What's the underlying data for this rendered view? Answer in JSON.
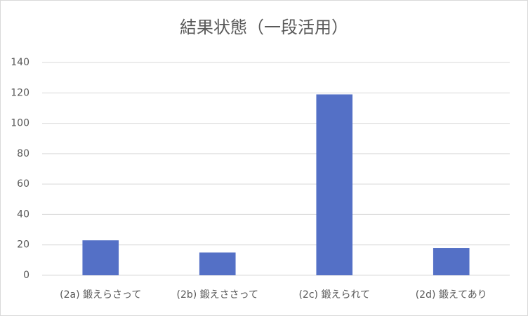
{
  "chart_data": {
    "type": "bar",
    "title": "結果状態（一段活用）",
    "categories": [
      "(2a) 鍛えらさって",
      "(2b) 鍛えささって",
      "(2c) 鍛えられて",
      "(2d) 鍛えてあり"
    ],
    "values": [
      23,
      15,
      119,
      18
    ],
    "color": "#5470c6",
    "ylim": [
      0,
      140
    ],
    "yticks": [
      0,
      20,
      40,
      60,
      80,
      100,
      120,
      140
    ],
    "grid": true
  }
}
